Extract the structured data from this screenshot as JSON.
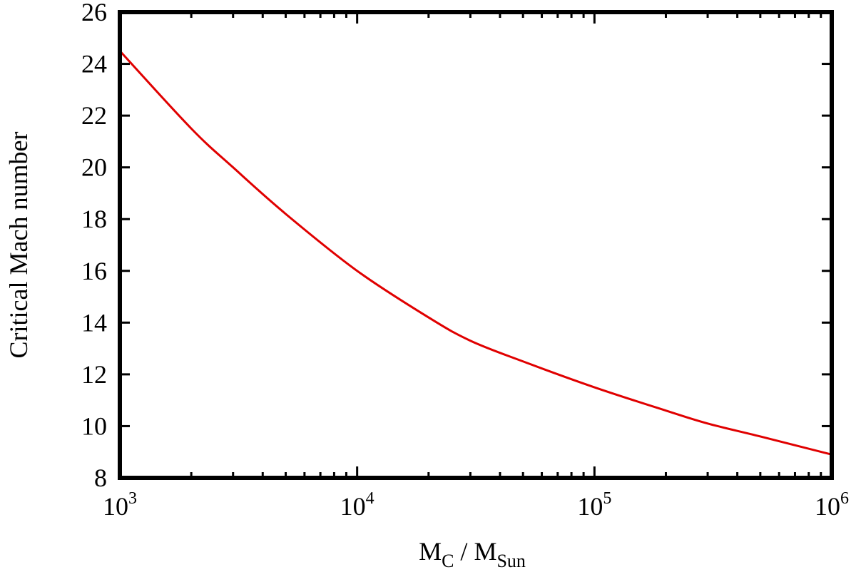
{
  "chart_data": {
    "type": "line",
    "title": "",
    "xlabel": {
      "main": "M",
      "main_sub": "C",
      "sep": " / ",
      "denom": "M",
      "denom_sub": "Sun"
    },
    "ylabel": "Critical Mach number",
    "xscale": "log",
    "xlim": [
      1000,
      1000000
    ],
    "ylim": [
      8,
      26
    ],
    "yticks": [
      "8",
      "10",
      "12",
      "14",
      "16",
      "18",
      "20",
      "22",
      "24",
      "26"
    ],
    "xticks": [
      {
        "base": "10",
        "exp": "3"
      },
      {
        "base": "10",
        "exp": "4"
      },
      {
        "base": "10",
        "exp": "5"
      },
      {
        "base": "10",
        "exp": "6"
      }
    ],
    "grid": false,
    "series": [
      {
        "color": "#e00000",
        "x": [
          1000,
          2000,
          3000,
          5000,
          10000,
          20000,
          30000,
          50000,
          100000,
          200000,
          300000,
          500000,
          1000000
        ],
        "y": [
          24.5,
          21.5,
          20.0,
          18.2,
          16.0,
          14.2,
          13.3,
          12.5,
          11.5,
          10.6,
          10.1,
          9.6,
          8.9
        ]
      }
    ]
  }
}
